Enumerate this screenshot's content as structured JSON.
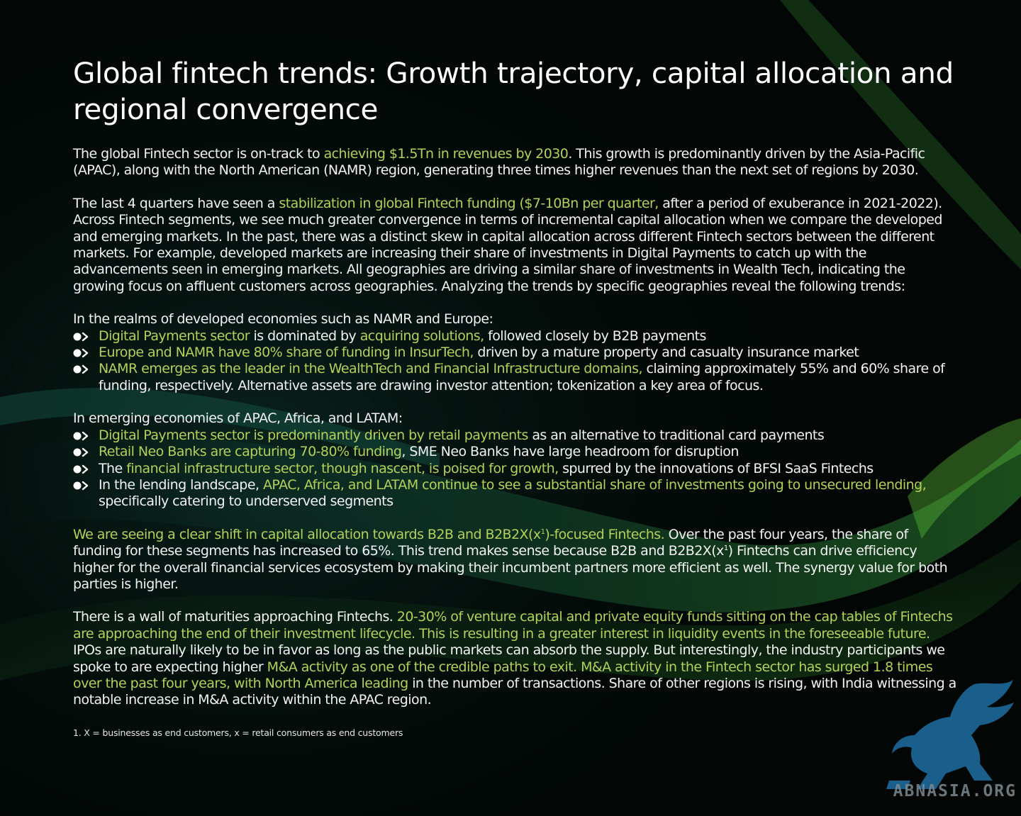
{
  "title": "Global fintech trends: Growth trajectory, capital allocation and regional convergence",
  "para1": [
    {
      "t": "The global Fintech sector is on-track to ",
      "h": false
    },
    {
      "t": "achieving $1.5Tn in revenues by 2030",
      "h": true
    },
    {
      "t": ". This growth is predominantly driven by the Asia-Pacific (APAC), along with the North American (NAMR) region, generating three times higher revenues than the next set of regions by 2030.",
      "h": false
    }
  ],
  "para2": [
    {
      "t": "The last 4 quarters have seen a ",
      "h": false
    },
    {
      "t": "stabilization in global Fintech funding ($7-10Bn per quarter,",
      "h": true
    },
    {
      "t": " after a period of exuberance in 2021-2022). Across Fintech segments, we see much greater convergence in terms of incremental capital allocation when we compare the developed and emerging markets. In the past, there was a distinct skew in capital allocation across different Fintech sectors between the different markets. For example, developed markets are increasing their share of investments in Digital Payments to catch up with the advancements seen in emerging markets. All geographies are driving a similar share of investments in Wealth Tech, indicating the growing focus on affluent customers across geographies. Analyzing the trends by specific geographies reveal the following trends:",
      "h": false
    }
  ],
  "developed_intro": "In the realms of developed economies such as NAMR and Europe:",
  "developed_bullets": [
    [
      {
        "t": "Digital Payments sector",
        "h": true
      },
      {
        "t": " is dominated by ",
        "h": false
      },
      {
        "t": "acquiring solutions,",
        "h": true
      },
      {
        "t": " followed closely by B2B payments",
        "h": false
      }
    ],
    [
      {
        "t": "Europe and NAMR have 80% share of funding in InsurTech,",
        "h": true
      },
      {
        "t": " driven by a mature property and casualty insurance market",
        "h": false
      }
    ],
    [
      {
        "t": "NAMR emerges as the leader in the WealthTech and Financial Infrastructure domains,",
        "h": true
      },
      {
        "t": " claiming approximately 55% and 60% share of funding, respectively. Alternative assets are drawing investor attention; tokenization a key area of focus.",
        "h": false
      }
    ]
  ],
  "emerging_intro": "In emerging economies of APAC, Africa, and LATAM:",
  "emerging_bullets": [
    [
      {
        "t": "Digital Payments sector is predominantly driven by retail payments",
        "h": true
      },
      {
        "t": " as an alternative to traditional card payments",
        "h": false
      }
    ],
    [
      {
        "t": "Retail Neo Banks are capturing 70-80% funding",
        "h": true
      },
      {
        "t": ", SME Neo Banks have large headroom for disruption",
        "h": false
      }
    ],
    [
      {
        "t": "The ",
        "h": false
      },
      {
        "t": "financial infrastructure sector, though nascent, is poised for growth,",
        "h": true
      },
      {
        "t": " spurred by the innovations of BFSI SaaS Fintechs",
        "h": false
      }
    ],
    [
      {
        "t": "In the lending landscape, ",
        "h": false
      },
      {
        "t": "APAC, Africa, and LATAM continue to see a substantial share of investments going to unsecured lending,",
        "h": true
      },
      {
        "t": " specifically catering to underserved segments",
        "h": false
      }
    ]
  ],
  "para3": [
    {
      "t": "We are seeing a clear shift in capital allocation towards B2B and B2B2X(x",
      "h": true
    },
    {
      "t": "1",
      "h": true,
      "sup": true
    },
    {
      "t": ")-focused Fintechs.",
      "h": true
    },
    {
      "t": " Over the past four years, the share of funding for these segments has increased to 65%. This trend makes sense because B2B and B2B2X(x",
      "h": false
    },
    {
      "t": "1",
      "h": false,
      "sup": true
    },
    {
      "t": ") Fintechs can drive efficiency higher for the overall financial services ecosystem by making their incumbent partners more efficient as well. The synergy value for both parties is higher.",
      "h": false
    }
  ],
  "para4": [
    {
      "t": "There is a wall of maturities approaching Fintechs. ",
      "h": false
    },
    {
      "t": "20-30% of venture capital and private equity funds sitting on the cap tables of Fintechs are approaching the end of their investment lifecycle. This is resulting in a greater interest in liquidity events in the foreseeable future.",
      "h": true
    },
    {
      "t": " IPOs are naturally likely to be in favor as long as the public markets can absorb the supply. But interestingly, the industry participants we spoke to are expecting higher ",
      "h": false
    },
    {
      "t": "M&A activity as one of the credible paths to exit. M&A activity in the Fintech sector has surged 1.8 times over the past four years, with North America leading",
      "h": true
    },
    {
      "t": " in the number of transactions. Share of other regions is rising, with India witnessing a notable increase in M&A activity within the APAC region.",
      "h": false
    }
  ],
  "footnote": "1. X = businesses as end customers, x = retail consumers as end customers",
  "watermark": "ABNASIA.ORG",
  "colors": {
    "highlight": "#b4d05a",
    "text": "#f2f2f2",
    "background": "#020604"
  }
}
